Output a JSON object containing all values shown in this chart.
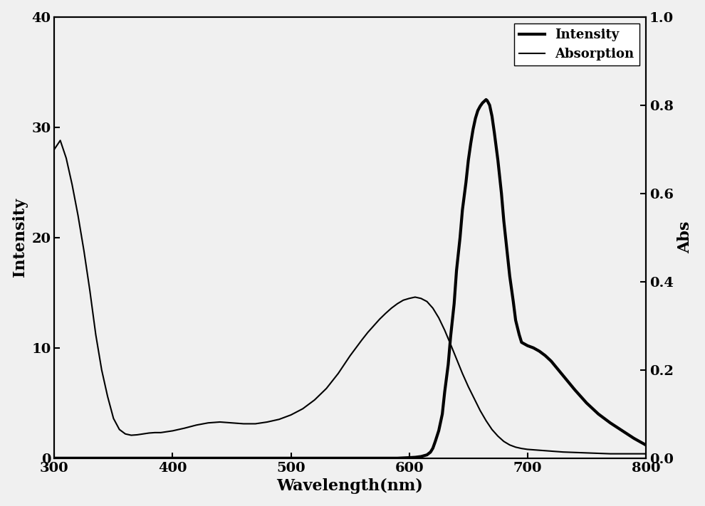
{
  "title": "",
  "xlabel": "Wavelength(nm)",
  "ylabel_left": "Intensity",
  "ylabel_right": "Abs",
  "xlim": [
    300,
    800
  ],
  "ylim_left": [
    0,
    40
  ],
  "ylim_right": [
    0.0,
    1.0
  ],
  "xticks": [
    300,
    400,
    500,
    600,
    700,
    800
  ],
  "yticks_left": [
    0,
    10,
    20,
    30,
    40
  ],
  "yticks_right": [
    0.0,
    0.2,
    0.4,
    0.6,
    0.8,
    1.0
  ],
  "legend_entries": [
    "Intensity",
    "Absorption"
  ],
  "line_color": "#000000",
  "background_color": "#f0f0f0",
  "absorption_x": [
    300,
    305,
    310,
    315,
    320,
    325,
    330,
    335,
    340,
    345,
    350,
    355,
    360,
    365,
    370,
    375,
    380,
    385,
    390,
    395,
    400,
    410,
    420,
    430,
    440,
    450,
    460,
    470,
    480,
    490,
    500,
    510,
    520,
    530,
    540,
    550,
    555,
    560,
    565,
    570,
    575,
    580,
    585,
    590,
    595,
    600,
    605,
    610,
    615,
    620,
    625,
    630,
    635,
    640,
    645,
    650,
    655,
    660,
    665,
    670,
    675,
    680,
    685,
    690,
    695,
    700,
    710,
    720,
    730,
    740,
    750,
    760,
    770,
    780,
    790,
    800
  ],
  "absorption_y": [
    0.7,
    0.72,
    0.68,
    0.62,
    0.55,
    0.47,
    0.38,
    0.28,
    0.2,
    0.14,
    0.09,
    0.065,
    0.055,
    0.052,
    0.053,
    0.055,
    0.057,
    0.058,
    0.058,
    0.06,
    0.062,
    0.068,
    0.075,
    0.08,
    0.082,
    0.08,
    0.078,
    0.078,
    0.082,
    0.088,
    0.098,
    0.112,
    0.132,
    0.158,
    0.192,
    0.232,
    0.25,
    0.268,
    0.285,
    0.3,
    0.315,
    0.328,
    0.34,
    0.35,
    0.358,
    0.362,
    0.365,
    0.362,
    0.355,
    0.34,
    0.318,
    0.29,
    0.258,
    0.225,
    0.192,
    0.162,
    0.135,
    0.108,
    0.085,
    0.065,
    0.05,
    0.038,
    0.03,
    0.025,
    0.022,
    0.02,
    0.018,
    0.016,
    0.014,
    0.013,
    0.012,
    0.011,
    0.01,
    0.01,
    0.01,
    0.01
  ],
  "intensity_x": [
    300,
    310,
    320,
    330,
    340,
    350,
    360,
    370,
    380,
    390,
    400,
    410,
    420,
    430,
    440,
    450,
    460,
    470,
    480,
    490,
    500,
    510,
    520,
    530,
    540,
    550,
    560,
    570,
    580,
    590,
    600,
    605,
    610,
    615,
    618,
    620,
    622,
    625,
    628,
    630,
    633,
    635,
    638,
    640,
    643,
    645,
    648,
    650,
    652,
    654,
    656,
    658,
    660,
    662,
    664,
    665,
    666,
    668,
    670,
    672,
    675,
    678,
    680,
    683,
    685,
    688,
    690,
    693,
    695,
    700,
    705,
    710,
    715,
    720,
    730,
    740,
    750,
    760,
    770,
    780,
    790,
    800
  ],
  "intensity_y": [
    0.0,
    0.0,
    0.0,
    0.0,
    0.0,
    0.0,
    0.0,
    0.0,
    0.0,
    0.0,
    0.0,
    0.0,
    0.0,
    0.0,
    0.0,
    0.0,
    0.0,
    0.0,
    0.0,
    0.0,
    0.0,
    0.0,
    0.0,
    0.0,
    0.0,
    0.0,
    0.0,
    0.0,
    0.0,
    0.0,
    0.05,
    0.08,
    0.15,
    0.3,
    0.55,
    0.9,
    1.5,
    2.5,
    4.0,
    6.0,
    8.5,
    11.0,
    14.0,
    17.0,
    20.0,
    22.5,
    25.0,
    27.0,
    28.5,
    29.8,
    30.8,
    31.5,
    31.9,
    32.2,
    32.4,
    32.5,
    32.4,
    32.0,
    31.0,
    29.5,
    27.0,
    24.0,
    21.5,
    18.5,
    16.5,
    14.2,
    12.5,
    11.2,
    10.5,
    10.2,
    10.0,
    9.7,
    9.3,
    8.8,
    7.5,
    6.2,
    5.0,
    4.0,
    3.2,
    2.5,
    1.8,
    1.2
  ]
}
